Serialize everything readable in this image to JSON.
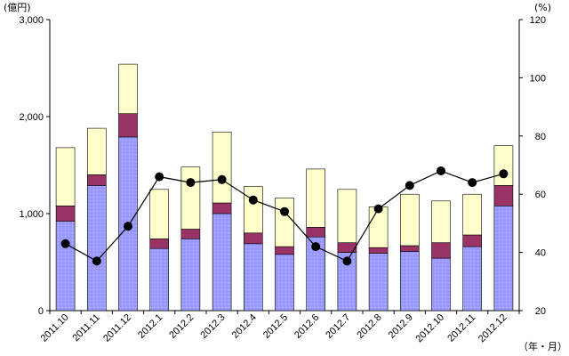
{
  "chart_data": {
    "type": "bar",
    "stacked": true,
    "categories": [
      "2011.10",
      "2011.11",
      "2011.12",
      "2012.1",
      "2012.2",
      "2012.3",
      "2012.4",
      "2012.5",
      "2012.6",
      "2012.7",
      "2012.8",
      "2012.9",
      "2012.10",
      "2012.11",
      "2012.12"
    ],
    "series": [
      {
        "values": [
          920,
          1290,
          1790,
          640,
          740,
          1000,
          690,
          580,
          760,
          600,
          590,
          610,
          540,
          660,
          1080
        ],
        "color": "#9999ff"
      },
      {
        "values": [
          160,
          110,
          240,
          100,
          100,
          110,
          110,
          80,
          100,
          100,
          60,
          60,
          160,
          120,
          210
        ],
        "color": "#993366"
      },
      {
        "values": [
          600,
          480,
          510,
          510,
          640,
          730,
          480,
          500,
          600,
          550,
          420,
          530,
          430,
          420,
          410
        ],
        "color": "#ffffcc"
      }
    ],
    "line_series": {
      "axis": "right",
      "values": [
        43,
        37,
        49,
        66,
        64,
        65,
        58,
        54,
        42,
        37,
        55,
        63,
        68,
        64,
        67
      ],
      "color": "#000000"
    },
    "left_axis": {
      "unit": "(億円)",
      "min": 0,
      "max": 3000,
      "ticks": [
        "0",
        "1,000",
        "2,000",
        "3,000"
      ],
      "tick_values": [
        0,
        1000,
        2000,
        3000
      ]
    },
    "right_axis": {
      "unit": "(%)",
      "min": 20,
      "max": 120,
      "ticks": [
        "20",
        "40",
        "60",
        "80",
        "100",
        "120"
      ],
      "tick_values": [
        20,
        40,
        60,
        80,
        100,
        120
      ]
    },
    "x_unit": "（年・月）",
    "grid": false,
    "legend": "none"
  }
}
